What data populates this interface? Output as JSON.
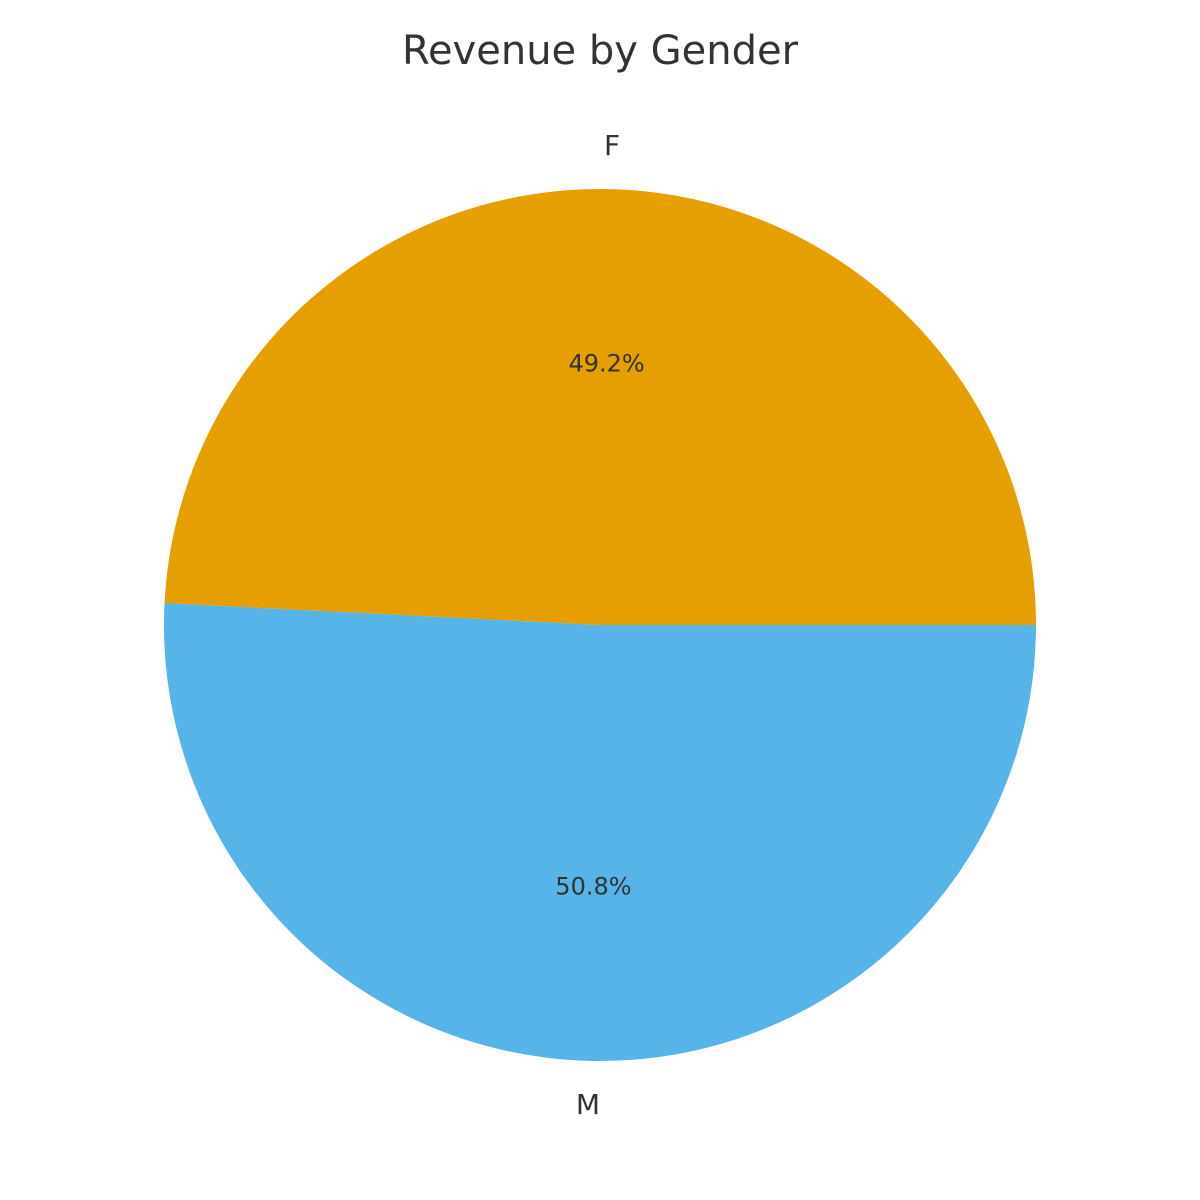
{
  "chart_data": {
    "type": "pie",
    "title": "Revenue by Gender",
    "slices": [
      {
        "label": "F",
        "value": 49.2,
        "pct_label": "49.2%",
        "color": "#E5A000"
      },
      {
        "label": "M",
        "value": 50.8,
        "pct_label": "50.8%",
        "color": "#56B4E9"
      }
    ],
    "start_angle_deg": 0,
    "direction": "counterclockwise"
  }
}
